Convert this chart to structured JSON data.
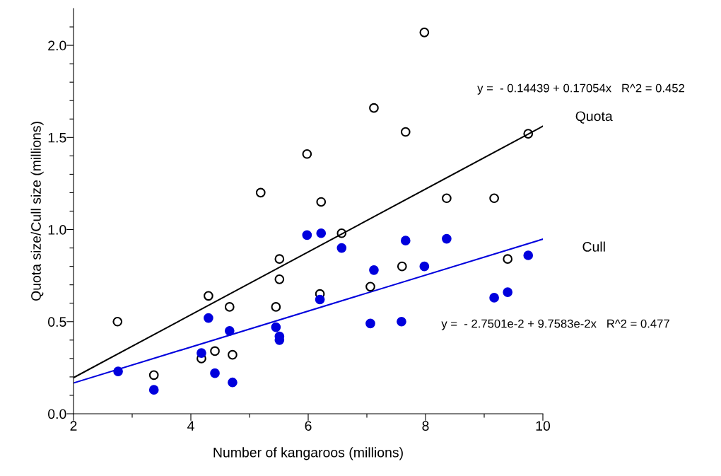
{
  "chart_data": {
    "type": "scatter",
    "xlabel": "Number of kangaroos (millions)",
    "ylabel": "Quota size/Cull size (millions)",
    "xlim": [
      2,
      10
    ],
    "ylim": [
      0,
      2.2
    ],
    "xticks": [
      2,
      {
        "value": 3,
        "label": null
      },
      4,
      {
        "value": 5,
        "label": null
      },
      6,
      {
        "value": 7,
        "label": null
      },
      8,
      {
        "value": 9,
        "label": null
      },
      10
    ],
    "yticks": [
      {
        "value": 0,
        "label": "0.0"
      },
      {
        "value": 0.1,
        "label": null
      },
      {
        "value": 0.2,
        "label": null
      },
      {
        "value": 0.3,
        "label": null
      },
      {
        "value": 0.4,
        "label": null
      },
      0.5,
      {
        "value": 0.6,
        "label": null
      },
      {
        "value": 0.7,
        "label": null
      },
      {
        "value": 0.8,
        "label": null
      },
      {
        "value": 0.9,
        "label": null
      },
      {
        "value": 1.0,
        "label": "1.0"
      },
      {
        "value": 1.1,
        "label": null
      },
      {
        "value": 1.2,
        "label": null
      },
      {
        "value": 1.3,
        "label": null
      },
      {
        "value": 1.4,
        "label": null
      },
      1.5,
      {
        "value": 1.6,
        "label": null
      },
      {
        "value": 1.7,
        "label": null
      },
      {
        "value": 1.8,
        "label": null
      },
      {
        "value": 1.9,
        "label": null
      },
      {
        "value": 2.0,
        "label": "2.0"
      },
      {
        "value": 2.1,
        "label": null
      }
    ],
    "grid": false,
    "legend": false,
    "series": [
      {
        "marker": "circle",
        "color": "#000000",
        "x": [
          2.75,
          3.37,
          4.3,
          4.18,
          4.41,
          4.66,
          4.71,
          5.19,
          5.45,
          5.51,
          5.51,
          5.98,
          6.2,
          6.22,
          6.57,
          7.06,
          7.12,
          7.6,
          7.66,
          7.98,
          8.36,
          9.17,
          9.4,
          9.75
        ],
        "values": [
          0.5,
          0.21,
          0.64,
          0.3,
          0.34,
          0.58,
          0.32,
          1.2,
          0.58,
          0.84,
          0.73,
          1.41,
          0.65,
          1.15,
          0.98,
          0.69,
          1.66,
          0.8,
          1.53,
          2.07,
          1.17,
          1.17,
          0.84,
          1.52
        ]
      },
      {
        "marker": "circle",
        "color": "#0000dd",
        "x": [
          2.76,
          3.37,
          4.18,
          4.3,
          4.41,
          4.66,
          4.71,
          5.45,
          5.51,
          5.51,
          5.98,
          6.2,
          6.22,
          6.57,
          7.06,
          7.12,
          7.59,
          7.66,
          7.98,
          8.36,
          9.17,
          9.4,
          9.75
        ],
        "values": [
          0.23,
          0.13,
          0.33,
          0.52,
          0.22,
          0.45,
          0.17,
          0.47,
          0.42,
          0.4,
          0.97,
          0.62,
          0.98,
          0.9,
          0.49,
          0.78,
          0.5,
          0.94,
          0.8,
          0.95,
          0.63,
          0.66,
          0.86
        ]
      },
      {
        "type": "line",
        "name": "Quota",
        "color": "#000000",
        "line_style": "solid",
        "marker": "none",
        "x": [
          2,
          10
        ],
        "values": [
          0.196,
          1.561
        ]
      },
      {
        "type": "line",
        "name": "Cull",
        "color": "#0000dd",
        "line_style": "solid",
        "marker": "none",
        "x": [
          2,
          10
        ],
        "values": [
          0.167,
          0.948
        ]
      }
    ],
    "annotations": [
      "y =  - 0.14439 + 0.17054x   R^2 = 0.452",
      "y =  - 2.7501e-2 + 9.7583e-2x   R^2 = 0.477"
    ]
  }
}
